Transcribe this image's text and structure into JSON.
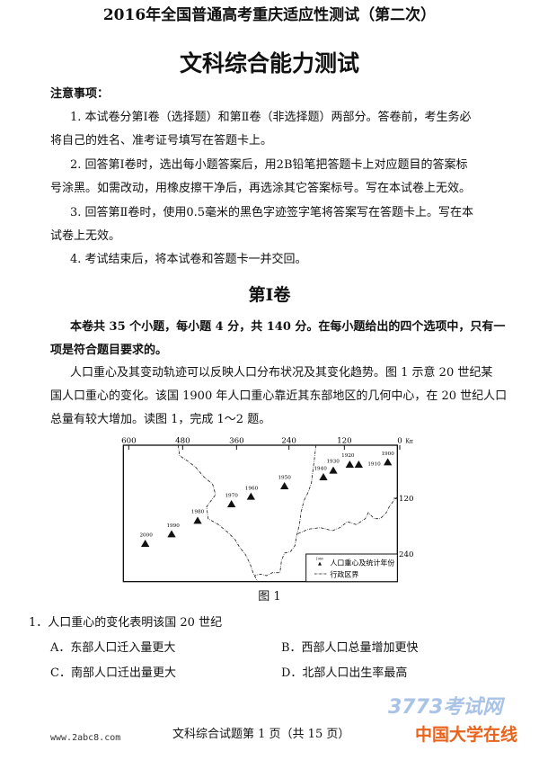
{
  "header": {
    "title": "2016年全国普通高考重庆适应性测试（第二次）",
    "subtitle": "文科综合能力测试"
  },
  "notice": {
    "heading": "注意事项：",
    "lines": [
      "1. 本试卷分第Ⅰ卷（选择题）和第Ⅱ卷（非选择题）两部分。答卷前，考生务必",
      "将自己的姓名、准考证号填写在答题卡上。",
      "2. 回答第Ⅰ卷时，选出每小题答案后，用2B铅笔把答题卡上对应题目的答案标",
      "号涂黑。如需改动，用橡皮擦干净后，再选涂其它答案标号。写在本试卷上无效。",
      "3. 回答第Ⅱ卷时，使用0.5毫米的黑色字迹签字笔将答案写在答题卡上。写在本",
      "试卷上无效。",
      "4. 考试结束后，将本试卷和答题卡一并交回。"
    ]
  },
  "section": {
    "title": "第Ⅰ卷",
    "intro": [
      "本卷共 35 个小题，每小题 4 分，共 140 分。在每小题给出的四个选项中，只有一",
      "项是符合题目要求的。"
    ]
  },
  "passage": [
    "人口重心及其变动轨迹可以反映人口分布状况及其变化趋势。图 1 示意 20 世纪某",
    "国人口重心的变化。该国 1900 年人口重心靠近其东部地区的几何中心，在 20 世纪人口",
    "总量有较大增加。读图 1，完成 1～2 题。"
  ],
  "map": {
    "top_ticks": [
      "600",
      "480",
      "360",
      "240",
      "120",
      "0"
    ],
    "unit": "Km",
    "right_ticks": [
      "120",
      "240"
    ],
    "years": [
      "1900",
      "1910",
      "1920",
      "1930",
      "1940",
      "1950",
      "1960",
      "1970",
      "1980",
      "1990",
      "2000"
    ],
    "legend": {
      "marker_year": "1960",
      "marker_label": "人口重心及统计年份",
      "boundary_label": "行政区界"
    },
    "caption": "图 1"
  },
  "question": {
    "stem": "1．人口重心的变化表明该国 20 世纪",
    "options": [
      "A．东部人口迁入量更大",
      "B．西部人口总量增加更快",
      "C．南部人口迁出量更大",
      "D．北部人口出生率最高"
    ]
  },
  "footer": {
    "site": "www.2abc8.com",
    "page": "文科综合试题第 1 页（共 15 页）",
    "watermark_top": "3773考试网",
    "watermark_bottom": "中国大学在线"
  }
}
